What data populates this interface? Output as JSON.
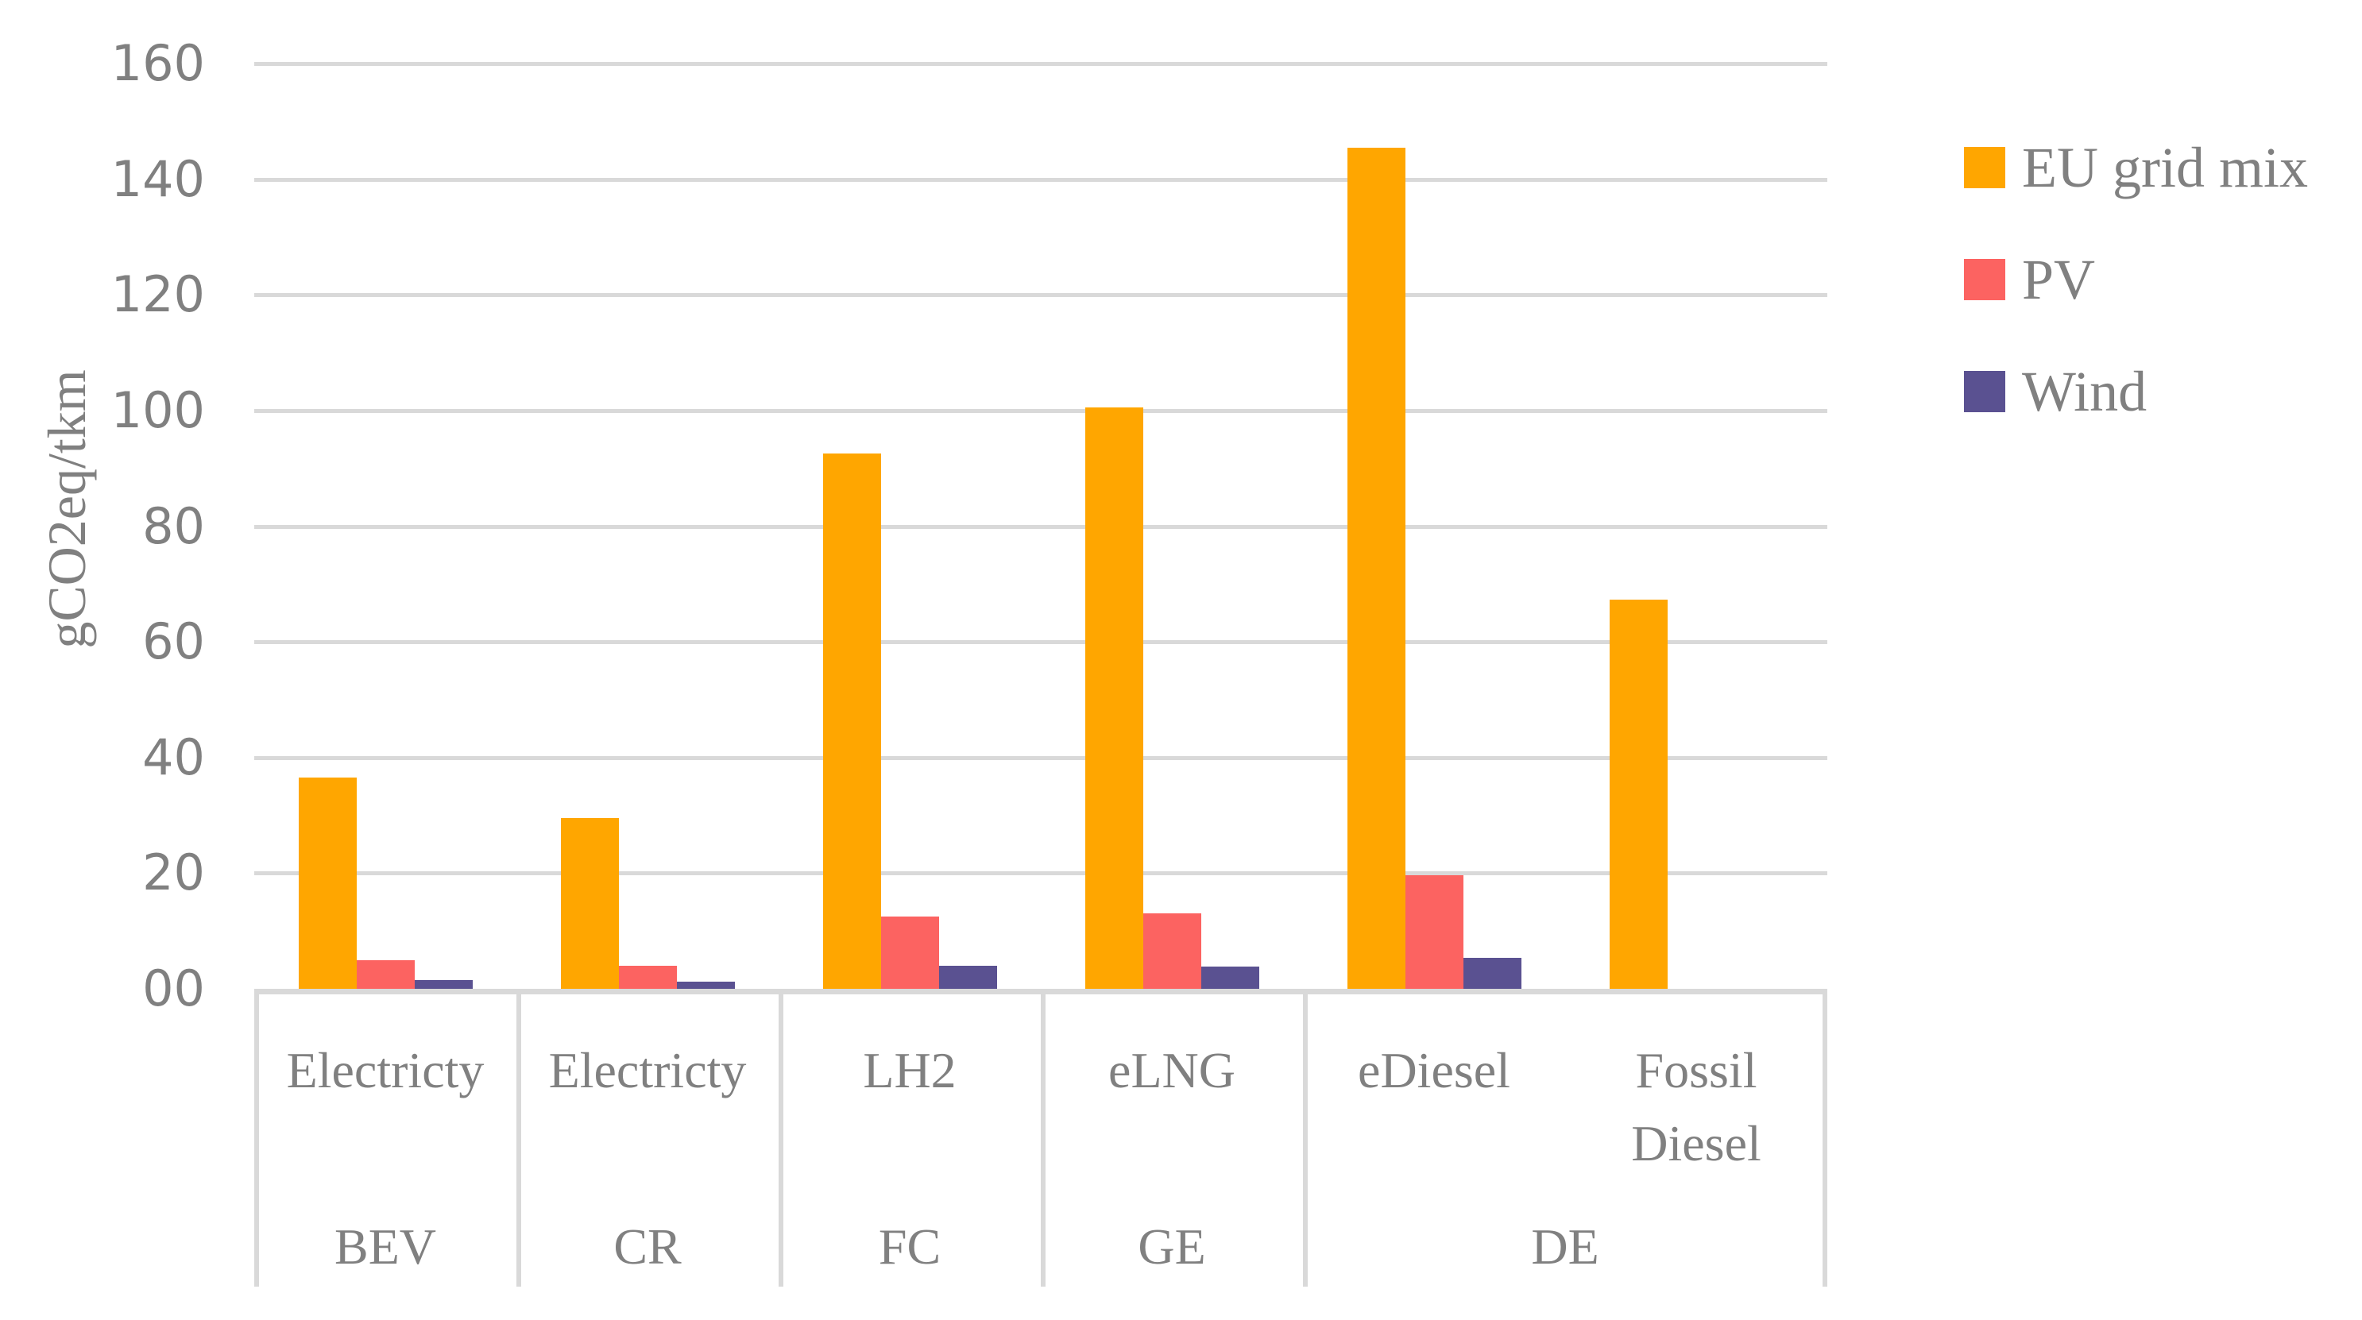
{
  "chart_data": {
    "type": "bar",
    "title": "",
    "ylabel": "gCO2eq/tkm",
    "ylim": [
      0,
      160
    ],
    "ytick_step": 20,
    "ytick_labels": [
      "160",
      "140",
      "120",
      "100",
      "80",
      "60",
      "40",
      "20",
      "00"
    ],
    "grid": true,
    "legend_position": "right",
    "grid_color": "#D9D9D9",
    "text_color": "#808080",
    "series": [
      {
        "name": "EU grid mix",
        "color": "#FFA600"
      },
      {
        "name": "PV",
        "color": "#FC6361"
      },
      {
        "name": "Wind",
        "color": "#5A5191"
      }
    ],
    "groups": [
      {
        "fuel": "Electricty",
        "powertrain": "BEV",
        "values": [
          36.5,
          5.0,
          1.5
        ]
      },
      {
        "fuel": "Electricty",
        "powertrain": "CR",
        "values": [
          29.5,
          4.0,
          1.3
        ]
      },
      {
        "fuel": "LH2",
        "powertrain": "FC",
        "values": [
          92.5,
          12.5,
          4.0
        ]
      },
      {
        "fuel": "eLNG",
        "powertrain": "GE",
        "values": [
          100.5,
          13.0,
          3.8
        ]
      },
      {
        "fuel": "eDiesel",
        "powertrain": "DE",
        "values": [
          145.5,
          19.7,
          5.3
        ]
      },
      {
        "fuel": "Fossil Diesel",
        "fuel_lines": [
          "Fossil",
          "Diesel"
        ],
        "powertrain": "DE",
        "values": [
          67.3,
          0,
          0
        ]
      }
    ],
    "powertrain_cells": [
      {
        "label": "BEV",
        "span": 1
      },
      {
        "label": "CR",
        "span": 1
      },
      {
        "label": "FC",
        "span": 1
      },
      {
        "label": "GE",
        "span": 1
      },
      {
        "label": "DE",
        "span": 2
      }
    ]
  }
}
